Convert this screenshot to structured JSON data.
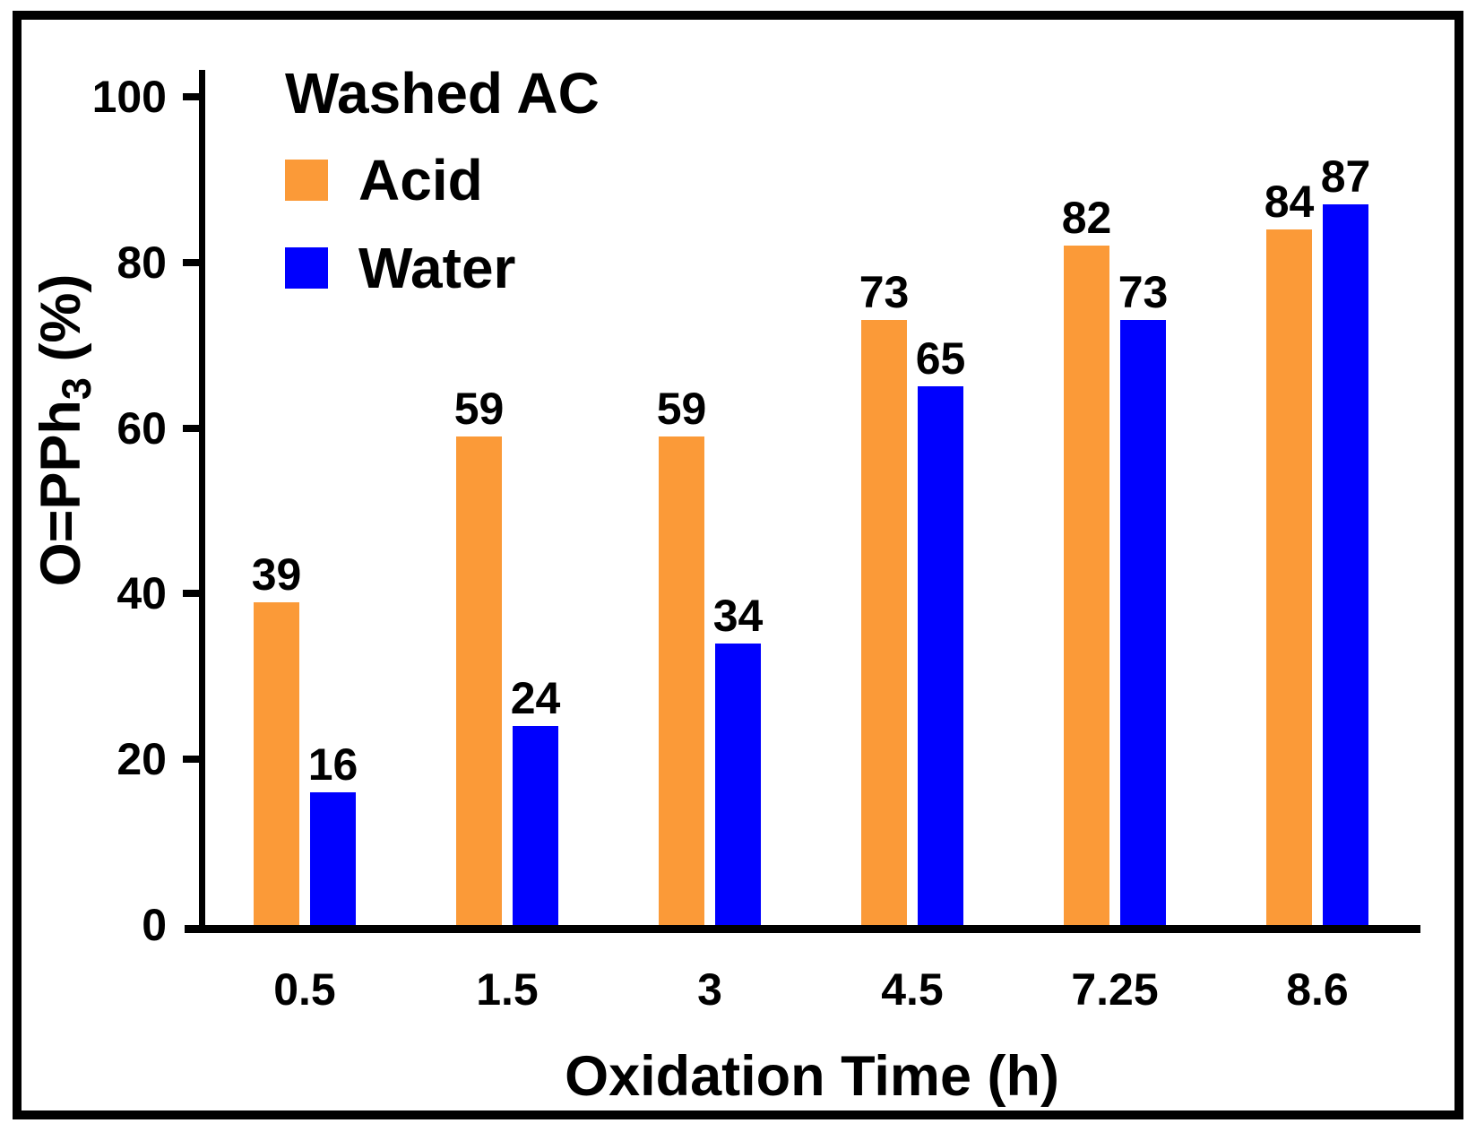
{
  "chart_data": {
    "type": "bar",
    "legend_title": "Washed AC",
    "categories": [
      "0.5",
      "1.5",
      "3",
      "4.5",
      "7.25",
      "8.6"
    ],
    "series": [
      {
        "name": "Acid",
        "color": "#FB9A38",
        "values": [
          39,
          59,
          59,
          73,
          82,
          84
        ]
      },
      {
        "name": "Water",
        "color": "#0000FE",
        "values": [
          16,
          24,
          34,
          65,
          73,
          87
        ]
      }
    ],
    "xlabel": "Oxidation Time (h)",
    "ylabel": "O=PPh3 (%)",
    "ylabel_parts": {
      "main": "O=PPh",
      "sub": "3",
      "suffix": " (%)"
    },
    "ylim": [
      0,
      100
    ],
    "yticks": [
      0,
      20,
      40,
      60,
      80,
      100
    ],
    "grid": false,
    "legend_position": "top-left-inside",
    "value_labels": true,
    "axis_color": "#000000",
    "text_color": "#000000"
  }
}
